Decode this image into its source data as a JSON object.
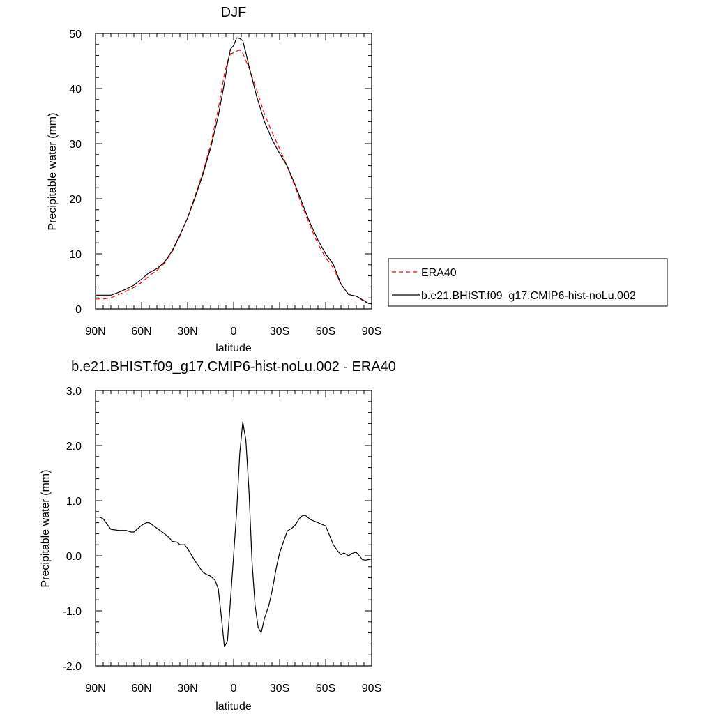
{
  "chart_data": [
    {
      "type": "line",
      "title": "DJF",
      "xlabel": "latitude",
      "ylabel": "Precipitable water (mm)",
      "xlim": [
        -90,
        90
      ],
      "ylim": [
        0,
        50
      ],
      "xticks": [
        -90,
        -60,
        -30,
        0,
        30,
        60,
        90
      ],
      "xtick_labels": [
        "90N",
        "60N",
        "30N",
        "0",
        "30S",
        "60S",
        "90S"
      ],
      "yticks": [
        0,
        10,
        20,
        30,
        40,
        50
      ],
      "ytick_labels": [
        "0",
        "10",
        "20",
        "30",
        "40",
        "50"
      ],
      "grid": false,
      "legend_position": "right",
      "series": [
        {
          "name": "ERA40",
          "color": "#ff0000",
          "style": "dashed",
          "x": [
            -90,
            -85,
            -80,
            -75,
            -70,
            -65,
            -60,
            -55,
            -50,
            -45,
            -40,
            -35,
            -30,
            -25,
            -20,
            -15,
            -10,
            -6,
            -4,
            -2,
            0,
            2,
            4,
            6,
            8,
            10,
            15,
            20,
            25,
            30,
            35,
            40,
            45,
            50,
            55,
            60,
            65,
            70,
            75,
            80,
            85,
            88,
            90
          ],
          "y": [
            1.8,
            1.8,
            2.0,
            2.6,
            3.2,
            3.9,
            4.8,
            6.0,
            7.0,
            8.3,
            10.4,
            13.2,
            16.6,
            20.6,
            24.8,
            29.8,
            36.3,
            42.6,
            44.9,
            46.3,
            46.5,
            46.8,
            47.0,
            46.4,
            45.0,
            43.8,
            39.8,
            35.5,
            32.1,
            29.1,
            25.8,
            22.2,
            18.5,
            15.0,
            11.8,
            9.3,
            7.4,
            4.5,
            2.6,
            2.3,
            1.4,
            1.0,
            0.9
          ]
        },
        {
          "name": "b.e21.BHIST.f09_g17.CMIP6-hist-noLu.002",
          "color": "#000000",
          "style": "solid",
          "x": [
            -90,
            -85,
            -80,
            -75,
            -70,
            -65,
            -60,
            -55,
            -50,
            -45,
            -40,
            -35,
            -30,
            -25,
            -20,
            -15,
            -10,
            -6,
            -4,
            -2,
            0,
            2,
            4,
            6,
            8,
            10,
            15,
            20,
            25,
            30,
            35,
            40,
            45,
            50,
            55,
            60,
            65,
            70,
            75,
            80,
            85,
            88,
            90
          ],
          "y": [
            2.5,
            2.5,
            2.5,
            3.0,
            3.6,
            4.3,
            5.4,
            6.6,
            7.3,
            8.5,
            10.6,
            13.4,
            16.5,
            20.3,
            24.4,
            29.2,
            35.0,
            41.0,
            44.4,
            47.2,
            47.8,
            49.2,
            49.1,
            48.7,
            46.5,
            44.1,
            38.6,
            34.1,
            30.8,
            28.2,
            25.9,
            22.6,
            19.0,
            15.5,
            12.5,
            10.0,
            8.1,
            4.5,
            2.6,
            2.3,
            1.5,
            1.0,
            0.9
          ]
        }
      ]
    },
    {
      "type": "line",
      "title": "b.e21.BHIST.f09_g17.CMIP6-hist-noLu.002 - ERA40",
      "xlabel": "latitude",
      "ylabel": "Precipitable water (mm)",
      "xlim": [
        -90,
        90
      ],
      "ylim": [
        -2.0,
        3.0
      ],
      "xticks": [
        -90,
        -60,
        -30,
        0,
        30,
        60,
        90
      ],
      "xtick_labels": [
        "90N",
        "60N",
        "30N",
        "0",
        "30S",
        "60S",
        "90S"
      ],
      "yticks": [
        -2.0,
        -1.0,
        0.0,
        1.0,
        2.0,
        3.0
      ],
      "ytick_labels": [
        "-2.0",
        "-1.0",
        "0.0",
        "1.0",
        "2.0",
        "3.0"
      ],
      "grid": false,
      "series": [
        {
          "color": "#000000",
          "style": "solid",
          "x": [
            -90,
            -87,
            -85,
            -80,
            -75,
            -70,
            -67,
            -65,
            -60,
            -57,
            -55,
            -50,
            -45,
            -42,
            -40,
            -37,
            -35,
            -32,
            -30,
            -25,
            -22,
            -20,
            -17,
            -15,
            -12,
            -10,
            -8,
            -6,
            -4,
            -2,
            0,
            2,
            4,
            6,
            8,
            10,
            12,
            14,
            16,
            18,
            20,
            23,
            25,
            28,
            30,
            35,
            38,
            40,
            43,
            45,
            47,
            50,
            55,
            60,
            65,
            68,
            70,
            72,
            75,
            77,
            79,
            80,
            82,
            84,
            86,
            88,
            90
          ],
          "y": [
            0.7,
            0.7,
            0.67,
            0.48,
            0.46,
            0.46,
            0.43,
            0.43,
            0.55,
            0.6,
            0.6,
            0.5,
            0.4,
            0.33,
            0.26,
            0.25,
            0.2,
            0.2,
            0.13,
            -0.1,
            -0.22,
            -0.3,
            -0.35,
            -0.37,
            -0.45,
            -0.6,
            -1.1,
            -1.65,
            -1.55,
            -0.8,
            0.0,
            0.8,
            1.85,
            2.43,
            2.1,
            1.2,
            -0.1,
            -0.9,
            -1.3,
            -1.4,
            -1.15,
            -0.9,
            -0.65,
            -0.2,
            0.05,
            0.45,
            0.5,
            0.55,
            0.68,
            0.73,
            0.73,
            0.66,
            0.6,
            0.54,
            0.2,
            0.08,
            0.02,
            0.05,
            0.0,
            0.04,
            0.06,
            0.06,
            0.0,
            -0.07,
            -0.08,
            -0.07,
            -0.06
          ]
        }
      ]
    }
  ]
}
